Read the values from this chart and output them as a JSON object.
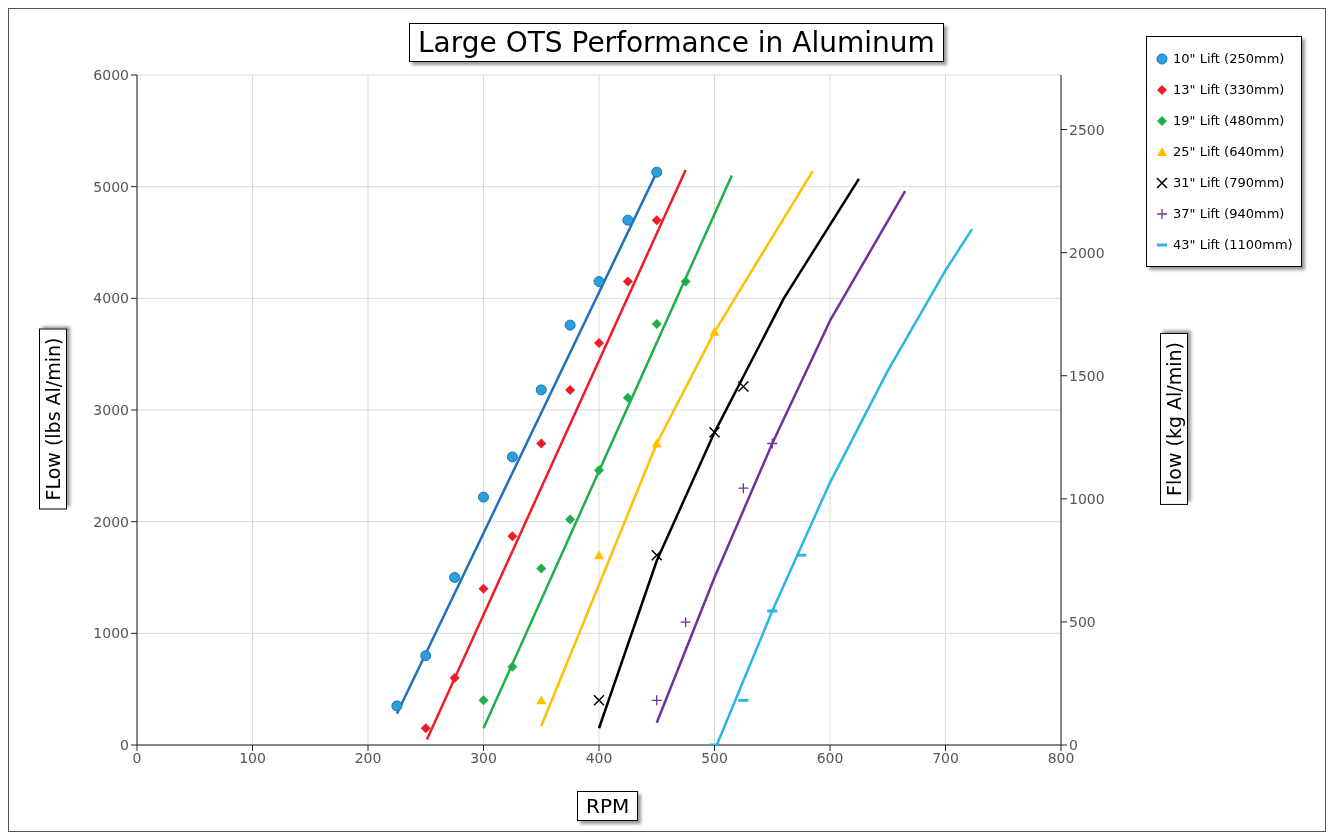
{
  "chart_data": {
    "type": "scatter",
    "title": "Large OTS Performance in Aluminum",
    "xlabel": "RPM",
    "ylabel": "FLow (lbs Al/min)",
    "y2label": "Flow (kg Al/min)",
    "xlim": [
      0,
      800
    ],
    "xticks": [
      0,
      100,
      200,
      300,
      400,
      500,
      600,
      700,
      800
    ],
    "ylim": [
      0,
      6000
    ],
    "yticks": [
      0,
      1000,
      2000,
      3000,
      4000,
      5000,
      6000
    ],
    "y2lim": [
      0,
      2721.55
    ],
    "y2ticks": [
      0,
      500,
      1000,
      1500,
      2000,
      2500
    ],
    "grid": true,
    "legend": "top right",
    "line_style": "solid",
    "series": [
      {
        "name": "10\" Lift (250mm)",
        "color": "#2a9fd8",
        "marker": "circle",
        "x": [
          225,
          250,
          275,
          300,
          325,
          350,
          375,
          400,
          425,
          450
        ],
        "values": [
          350,
          800,
          1500,
          2220,
          2580,
          3180,
          3760,
          4150,
          4700,
          5130
        ]
      },
      {
        "name": "13\" Lift (330mm)",
        "color": "#ee1c25",
        "marker": "diamond",
        "x": [
          250,
          275,
          300,
          325,
          350,
          375,
          400,
          425,
          450
        ],
        "values": [
          150,
          600,
          1400,
          1870,
          2700,
          3180,
          3600,
          4150,
          4700
        ]
      },
      {
        "name": "19\" Lift (480mm)",
        "color": "#1fae4b",
        "marker": "diamond",
        "x": [
          300,
          325,
          350,
          375,
          400,
          425,
          450,
          475
        ],
        "values": [
          400,
          700,
          1580,
          2020,
          2460,
          3110,
          3770,
          4150
        ]
      },
      {
        "name": "25\" Lift (640mm)",
        "color": "#ffc000",
        "marker": "triangle",
        "x": [
          350,
          400,
          450,
          500
        ],
        "values": [
          400,
          1700,
          2700,
          3700
        ]
      },
      {
        "name": "31\" Lift (790mm)",
        "color": "#000000",
        "marker": "cross",
        "x": [
          400,
          450,
          500,
          525
        ],
        "values": [
          400,
          1700,
          2800,
          3210
        ]
      },
      {
        "name": "37\" Lift (940mm)",
        "color": "#7030a0",
        "marker": "plus",
        "x": [
          450,
          475,
          525,
          550
        ],
        "values": [
          400,
          1100,
          2300,
          2700
        ]
      },
      {
        "name": "43\" Lift (1100mm)",
        "color": "#29b5e8",
        "marker": "square",
        "x": [
          500,
          525,
          550,
          575
        ],
        "values": [
          0,
          400,
          1200,
          1700
        ]
      },
      {
        "type": "line",
        "color": "#1f70c1",
        "x": [
          225,
          450
        ],
        "values": [
          280,
          5130
        ]
      },
      {
        "type": "line",
        "color": "#ee1c25",
        "x": [
          251,
          475
        ],
        "values": [
          50,
          5150
        ]
      },
      {
        "type": "line",
        "color": "#1fae4b",
        "x": [
          300,
          515
        ],
        "values": [
          150,
          5100
        ]
      },
      {
        "type": "line",
        "color": "#ffc000",
        "x": [
          350,
          450,
          500,
          585
        ],
        "values": [
          170,
          2700,
          3700,
          5140
        ]
      },
      {
        "type": "line",
        "color": "#000000",
        "x": [
          400,
          450,
          500,
          525,
          560,
          625
        ],
        "values": [
          150,
          1650,
          2800,
          3300,
          4000,
          5070
        ]
      },
      {
        "type": "line",
        "color": "#7030a0",
        "x": [
          450,
          500,
          550,
          600,
          665
        ],
        "values": [
          200,
          1500,
          2700,
          3800,
          4960
        ]
      },
      {
        "type": "line",
        "color": "#29b5e8",
        "x": [
          502,
          550,
          600,
          650,
          700,
          723
        ],
        "values": [
          0,
          1200,
          2350,
          3350,
          4250,
          4620
        ]
      }
    ]
  }
}
